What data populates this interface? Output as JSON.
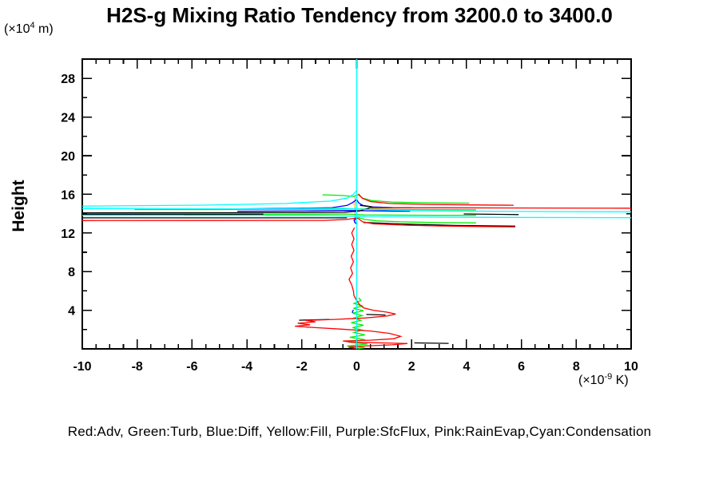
{
  "chart_data": {
    "type": "line",
    "title": "H2S-g Mixing Ratio Tendency from 3200.0 to 3400.0",
    "ylabel": "Height",
    "y_units": {
      "prefix": "(×10",
      "exponent": "4",
      "suffix": " m)"
    },
    "x_units": {
      "prefix": "(×10",
      "exponent": "-9",
      "suffix": " K)"
    },
    "legend_text": "Red:Adv, Green:Turb, Blue:Diff, Yellow:Fill, Purple:SfcFlux, Pink:RainEvap,Cyan:Condensation",
    "xlim": [
      -10,
      10
    ],
    "ylim": [
      0,
      30
    ],
    "x_major_step": 2,
    "x_minor_step": 0.5,
    "y_major_step": 4,
    "y_minor_step": 2,
    "grid": false,
    "x_ticks": [
      {
        "v": -10,
        "label": "-10"
      },
      {
        "v": -8,
        "label": "-8"
      },
      {
        "v": -6,
        "label": "-6"
      },
      {
        "v": -4,
        "label": "-4"
      },
      {
        "v": -2,
        "label": "-2"
      },
      {
        "v": 0,
        "label": "0"
      },
      {
        "v": 2,
        "label": "2"
      },
      {
        "v": 4,
        "label": "4"
      },
      {
        "v": 6,
        "label": "6"
      },
      {
        "v": 8,
        "label": "8"
      },
      {
        "v": 10,
        "label": "10"
      }
    ],
    "y_ticks": [
      {
        "v": 4,
        "label": "4"
      },
      {
        "v": 8,
        "label": "8"
      },
      {
        "v": 12,
        "label": "12"
      },
      {
        "v": 16,
        "label": "16"
      },
      {
        "v": 20,
        "label": "20"
      },
      {
        "v": 24,
        "label": "24"
      },
      {
        "v": 28,
        "label": "28"
      }
    ],
    "series": [
      {
        "name": "RainEvap",
        "color": "#ffa0c8",
        "lines": [
          [
            [
              0,
              30
            ],
            [
              0,
              0
            ]
          ]
        ]
      },
      {
        "name": "SfcFlux",
        "color": "#ee82ee",
        "lines": [
          [
            [
              -0.06,
              15.75
            ],
            [
              -0.06,
              12.95
            ]
          ]
        ]
      },
      {
        "name": "Fill",
        "color": "#ffff00",
        "lines": [
          [
            [
              0,
              15.4
            ],
            [
              -0.09,
              15.22
            ],
            [
              -0.13,
              15.0
            ],
            [
              -0.08,
              14.8
            ],
            [
              0,
              14.66
            ]
          ]
        ]
      },
      {
        "name": "Diff",
        "color": "#0000ff",
        "lines": [
          [
            [
              -4.3,
              14.5
            ],
            [
              -2.2,
              14.55
            ],
            [
              -0.9,
              14.62
            ],
            [
              -0.35,
              14.85
            ],
            [
              -0.15,
              15.15
            ],
            [
              0,
              15.45
            ],
            [
              0.08,
              15.1
            ],
            [
              0.22,
              14.85
            ],
            [
              0.55,
              14.7
            ],
            [
              1.3,
              14.63
            ],
            [
              2.05,
              14.6
            ]
          ],
          [
            [
              -4.35,
              14.24
            ],
            [
              -1.6,
              14.28
            ],
            [
              -0.4,
              14.33
            ],
            [
              0.25,
              14.3
            ],
            [
              1.1,
              14.27
            ],
            [
              1.95,
              14.25
            ]
          ],
          [
            [
              0.04,
              13.55
            ],
            [
              -0.1,
              13.35
            ],
            [
              -0.07,
              13.1
            ],
            [
              0.02,
              12.9
            ]
          ],
          [
            [
              -0.12,
              4.05
            ],
            [
              -0.16,
              3.8
            ],
            [
              -0.08,
              3.62
            ]
          ]
        ]
      },
      {
        "name": "Turb",
        "color": "#00ee00",
        "lines": [
          [
            [
              -1.25,
              15.95
            ],
            [
              -0.5,
              15.88
            ],
            [
              -0.12,
              15.78
            ],
            [
              0.05,
              15.95
            ],
            [
              0.22,
              15.6
            ],
            [
              0.55,
              15.35
            ],
            [
              1.3,
              15.2
            ],
            [
              2.5,
              15.12
            ],
            [
              4.1,
              15.08
            ]
          ],
          [
            [
              -8.1,
              14.42
            ],
            [
              -4,
              14.43
            ],
            [
              -1,
              14.46
            ],
            [
              0.05,
              14.5
            ],
            [
              1.6,
              14.42
            ],
            [
              4.35,
              14.4
            ]
          ],
          [
            [
              -6.3,
              13.9
            ],
            [
              -2,
              13.93
            ],
            [
              -0.35,
              13.96
            ],
            [
              0.25,
              13.86
            ],
            [
              2.6,
              13.83
            ],
            [
              4.35,
              13.82
            ]
          ],
          [
            [
              0.05,
              13.6
            ],
            [
              0.3,
              13.4
            ],
            [
              0.75,
              13.25
            ],
            [
              1.7,
              13.14
            ],
            [
              3.1,
              13.07
            ],
            [
              4.35,
              13.04
            ]
          ],
          [
            [
              0.08,
              5.3
            ],
            [
              0.15,
              5.0
            ],
            [
              -0.1,
              4.7
            ],
            [
              0.2,
              4.45
            ],
            [
              -0.12,
              4.2
            ],
            [
              0.25,
              3.95
            ],
            [
              -0.15,
              3.7
            ],
            [
              0.2,
              3.45
            ],
            [
              -0.1,
              3.2
            ],
            [
              0.15,
              2.95
            ],
            [
              -0.2,
              2.7
            ],
            [
              0.25,
              2.45
            ],
            [
              -0.15,
              2.2
            ],
            [
              0.2,
              1.95
            ],
            [
              -0.1,
              1.7
            ],
            [
              0.3,
              1.45
            ],
            [
              -0.25,
              1.2
            ],
            [
              0.3,
              0.95
            ],
            [
              -0.3,
              0.7
            ],
            [
              0.4,
              0.5
            ],
            [
              -0.35,
              0.3
            ],
            [
              0.3,
              0.12
            ],
            [
              0.05,
              0.02
            ]
          ]
        ]
      },
      {
        "name": "Total",
        "color": "#000000",
        "lines": [
          [
            [
              -10,
              14.08
            ],
            [
              -2,
              14.1
            ],
            [
              -0.45,
              14.14
            ],
            [
              0.1,
              14.28
            ],
            [
              0.42,
              14.55
            ],
            [
              0.58,
              14.7
            ],
            [
              0.35,
              14.78
            ],
            [
              0.12,
              14.86
            ]
          ],
          [
            [
              -10,
              13.94
            ],
            [
              -3.4,
              13.94
            ]
          ],
          [
            [
              -10,
              13.56
            ],
            [
              -0.35,
              13.56
            ]
          ],
          [
            [
              3.9,
              13.97
            ],
            [
              5.9,
              13.9
            ]
          ],
          [
            [
              0.25,
              13.08
            ],
            [
              1.6,
              12.93
            ],
            [
              3.6,
              12.78
            ],
            [
              5.78,
              12.7
            ]
          ],
          [
            [
              -1.0,
              3.05
            ],
            [
              -2.1,
              2.97
            ]
          ],
          [
            [
              0.35,
              3.56
            ],
            [
              1.05,
              3.5
            ]
          ],
          [
            [
              2.1,
              0.62
            ],
            [
              3.35,
              0.57
            ]
          ]
        ]
      },
      {
        "name": "Adv",
        "color": "#ff0000",
        "lines": [
          [
            [
              -10,
              13.28
            ],
            [
              -1.2,
              13.3
            ],
            [
              -0.35,
              13.4
            ],
            [
              0,
              13.56
            ]
          ],
          [
            [
              0.06,
              16.05
            ],
            [
              0.2,
              15.6
            ],
            [
              0.5,
              15.25
            ],
            [
              1.2,
              15.05
            ],
            [
              2.6,
              14.95
            ],
            [
              4.2,
              14.9
            ],
            [
              5.72,
              14.87
            ]
          ],
          [
            [
              0.45,
              14.6
            ],
            [
              3.2,
              14.6
            ],
            [
              10,
              14.56
            ]
          ],
          [
            [
              0.05,
              13.5
            ],
            [
              0.22,
              13.15
            ],
            [
              0.6,
              12.95
            ],
            [
              1.6,
              12.82
            ],
            [
              3.1,
              12.72
            ],
            [
              4.6,
              12.66
            ],
            [
              5.78,
              12.63
            ]
          ],
          [
            [
              -0.08,
              12.55
            ],
            [
              -0.18,
              12.0
            ],
            [
              -0.1,
              11.4
            ],
            [
              -0.18,
              10.8
            ],
            [
              -0.1,
              10.2
            ],
            [
              -0.2,
              9.6
            ],
            [
              -0.12,
              9.0
            ],
            [
              -0.22,
              8.4
            ],
            [
              -0.15,
              7.8
            ],
            [
              -0.28,
              7.2
            ],
            [
              -0.18,
              6.6
            ],
            [
              -0.12,
              6.0
            ],
            [
              -0.1,
              5.5
            ],
            [
              0.0,
              5.0
            ],
            [
              0.1,
              4.6
            ],
            [
              0.25,
              4.25
            ],
            [
              0.6,
              4.0
            ],
            [
              1.1,
              3.8
            ],
            [
              1.42,
              3.6
            ],
            [
              1.1,
              3.4
            ],
            [
              0.3,
              3.2
            ],
            [
              -0.8,
              3.05
            ],
            [
              -1.85,
              2.95
            ],
            [
              -1.5,
              2.8
            ],
            [
              -2.15,
              2.65
            ],
            [
              -1.7,
              2.5
            ],
            [
              -2.25,
              2.35
            ],
            [
              -1.5,
              2.2
            ],
            [
              -0.6,
              2.05
            ],
            [
              0.5,
              1.85
            ],
            [
              1.2,
              1.6
            ],
            [
              1.6,
              1.3
            ],
            [
              1.35,
              1.05
            ],
            [
              0.5,
              0.9
            ],
            [
              -0.5,
              0.82
            ],
            [
              -0.15,
              0.68
            ],
            [
              0.9,
              0.62
            ],
            [
              1.85,
              0.55
            ],
            [
              1.3,
              0.42
            ],
            [
              0.3,
              0.3
            ],
            [
              -0.3,
              0.18
            ],
            [
              0.05,
              0.02
            ]
          ]
        ]
      },
      {
        "name": "Condensation",
        "color": "#00ffff",
        "lines": [
          [
            [
              0,
              30
            ],
            [
              0,
              0
            ]
          ],
          [
            [
              0,
              16.4
            ],
            [
              -0.12,
              16.0
            ],
            [
              -0.35,
              15.6
            ],
            [
              -0.95,
              15.3
            ],
            [
              -2.6,
              15.05
            ],
            [
              -5.6,
              14.88
            ],
            [
              -10,
              14.78
            ]
          ],
          [
            [
              -10,
              14.52
            ],
            [
              -3,
              14.5
            ],
            [
              -0.5,
              14.55
            ],
            [
              0.25,
              14.45
            ],
            [
              2.2,
              14.3
            ],
            [
              6,
              14.22
            ],
            [
              10,
              14.18
            ]
          ],
          [
            [
              -10,
              13.82
            ],
            [
              -1.1,
              13.8
            ],
            [
              0.35,
              13.68
            ],
            [
              4.2,
              13.62
            ],
            [
              10,
              13.58
            ]
          ]
        ]
      }
    ]
  }
}
